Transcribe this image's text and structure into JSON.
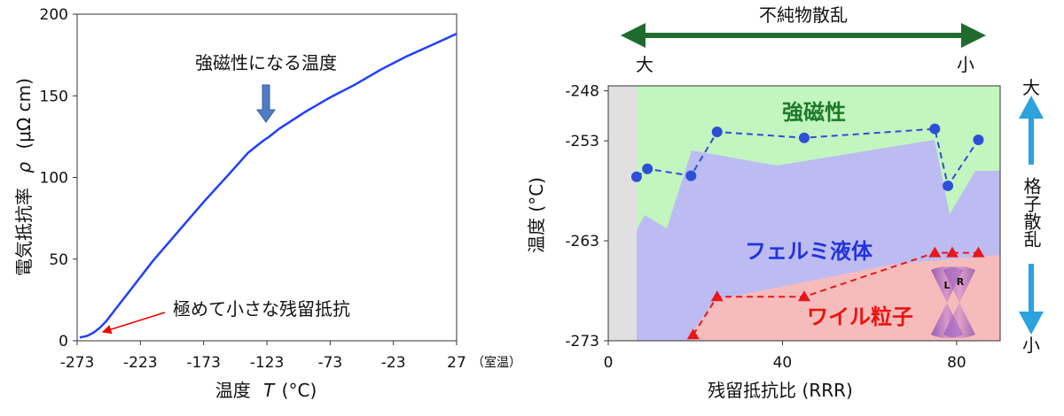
{
  "chart_data": [
    {
      "type": "line",
      "xlabel_main": "温度",
      "xlabel_symbol": "T",
      "xlabel_unit": "(°C)",
      "ylabel_main": "電気抵抗率",
      "ylabel_symbol": "ρ",
      "ylabel_unit": "(μΩ cm)",
      "x_ticks": [
        "-273",
        "-223",
        "-173",
        "-123",
        "-73",
        "-23",
        "27"
      ],
      "x_tick_values": [
        -273,
        -223,
        -173,
        -123,
        -73,
        -23,
        27
      ],
      "x_tick_note": "（室温）",
      "y_ticks": [
        "0",
        "50",
        "100",
        "150",
        "200"
      ],
      "y_tick_values": [
        0,
        50,
        100,
        150,
        200
      ],
      "xlim": [
        -273,
        27
      ],
      "ylim": [
        0,
        200
      ],
      "series": [
        {
          "color": "#1f3fff",
          "x": [
            -271,
            -265,
            -260,
            -255,
            -250,
            -243,
            -233,
            -213,
            -193,
            -173,
            -153,
            -138,
            -130,
            -125,
            -122,
            -113,
            -93,
            -73,
            -53,
            -33,
            -13,
            7,
            27
          ],
          "y": [
            2,
            3,
            5,
            8,
            12,
            19,
            29,
            49,
            67,
            85,
            102,
            115,
            120,
            123,
            124.5,
            130,
            140,
            149,
            157,
            166,
            174,
            181,
            188
          ]
        }
      ],
      "annotations": [
        {
          "text": "強磁性になる温度",
          "x": -123,
          "y": 124,
          "arrow_color": "#4f7cc3"
        },
        {
          "text": "極めて小さな残留抵抗",
          "x": -258,
          "y": 11,
          "arrow_color": "#ee0000"
        }
      ]
    },
    {
      "type": "scatter",
      "xlabel": "残留抵抗比 (RRR)",
      "ylabel": "温度 (°C)",
      "x_ticks": [
        "0",
        "40",
        "80"
      ],
      "x_tick_values": [
        0,
        40,
        80
      ],
      "y_ticks": [
        "-248",
        "-253",
        "-263",
        "-273"
      ],
      "y_tick_values": [
        -248,
        -253,
        -263,
        -273
      ],
      "xlim": [
        0,
        90
      ],
      "ylim": [
        -273,
        -247.5
      ],
      "regions": [
        {
          "label": "強磁性",
          "color": "#c3f5bf",
          "label_color": "#1d7a2a"
        },
        {
          "label": "フェルミ液体",
          "color": "#bcbcf2",
          "label_color": "#2233dd"
        },
        {
          "label": "ワイル粒子",
          "color": "#f6bcbc",
          "label_color": "#ee1111"
        }
      ],
      "series": [
        {
          "marker": "circle",
          "color": "#2c4fd6",
          "x": [
            6.5,
            9,
            19,
            25,
            45,
            75,
            78,
            85
          ],
          "y": [
            -256.6,
            -255.8,
            -256.5,
            -252.1,
            -252.7,
            -251.8,
            -257.5,
            -252.9
          ]
        },
        {
          "marker": "triangle",
          "color": "#e8161a",
          "x": [
            19.5,
            25,
            45,
            75,
            79,
            85
          ],
          "y": [
            -272.4,
            -268.6,
            -268.6,
            -264.2,
            -264.2,
            -264.2
          ]
        }
      ],
      "inset_labels": {
        "left": "L",
        "right": "R"
      },
      "top_arrow": {
        "label": "不純物散乱",
        "left": "大",
        "right": "小",
        "color": "#1f6b2e"
      },
      "right_arrow": {
        "label": "格子散乱",
        "top": "大",
        "bottom": "小",
        "color": "#2aa3de"
      }
    }
  ]
}
